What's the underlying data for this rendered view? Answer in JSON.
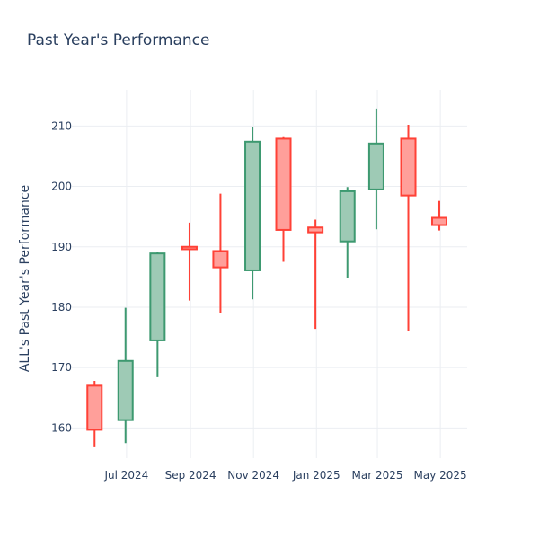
{
  "chart_data": {
    "type": "candlestick",
    "title": "Past Year's Performance",
    "xlabel": "",
    "ylabel": "ALL's Past Year's Performance",
    "ylim": [
      155,
      216
    ],
    "yticks": [
      160,
      170,
      180,
      190,
      200,
      210
    ],
    "grid": true,
    "x_range": [
      "2024-05-09",
      "2025-05-27"
    ],
    "xticks": [
      {
        "date": "2024-07-01",
        "label": "Jul 2024"
      },
      {
        "date": "2024-09-01",
        "label": "Sep 2024"
      },
      {
        "date": "2024-11-01",
        "label": "Nov 2024"
      },
      {
        "date": "2025-01-01",
        "label": "Jan 2025"
      },
      {
        "date": "2025-03-01",
        "label": "Mar 2025"
      },
      {
        "date": "2025-05-01",
        "label": "May 2025"
      }
    ],
    "candles": [
      {
        "date": "2024-05-31",
        "open": 167.0,
        "high": 167.8,
        "low": 156.8,
        "close": 159.7
      },
      {
        "date": "2024-06-30",
        "open": 161.3,
        "high": 179.9,
        "low": 157.5,
        "close": 171.1
      },
      {
        "date": "2024-07-31",
        "open": 174.5,
        "high": 189.1,
        "low": 168.4,
        "close": 188.9
      },
      {
        "date": "2024-08-31",
        "open": 190.0,
        "high": 194.0,
        "low": 181.1,
        "close": 189.6
      },
      {
        "date": "2024-09-30",
        "open": 189.3,
        "high": 198.8,
        "low": 179.1,
        "close": 186.6
      },
      {
        "date": "2024-10-31",
        "open": 186.1,
        "high": 209.9,
        "low": 181.3,
        "close": 207.4
      },
      {
        "date": "2024-11-30",
        "open": 207.9,
        "high": 208.3,
        "low": 187.5,
        "close": 192.8
      },
      {
        "date": "2024-12-31",
        "open": 193.2,
        "high": 194.5,
        "low": 176.4,
        "close": 192.4
      },
      {
        "date": "2025-01-31",
        "open": 190.9,
        "high": 199.9,
        "low": 184.8,
        "close": 199.2
      },
      {
        "date": "2025-02-28",
        "open": 199.5,
        "high": 212.9,
        "low": 192.9,
        "close": 207.1
      },
      {
        "date": "2025-03-31",
        "open": 207.9,
        "high": 210.2,
        "low": 176.0,
        "close": 198.5
      },
      {
        "date": "2025-04-30",
        "open": 194.8,
        "high": 197.6,
        "low": 192.7,
        "close": 193.6
      }
    ],
    "colors": {
      "increasing_line": "#3d9970",
      "increasing_fill": "#9ecab5",
      "decreasing_line": "#ff4136",
      "decreasing_fill": "#ff9f9a",
      "grid": "#ebeef2",
      "text": "#2a3f5f"
    }
  }
}
